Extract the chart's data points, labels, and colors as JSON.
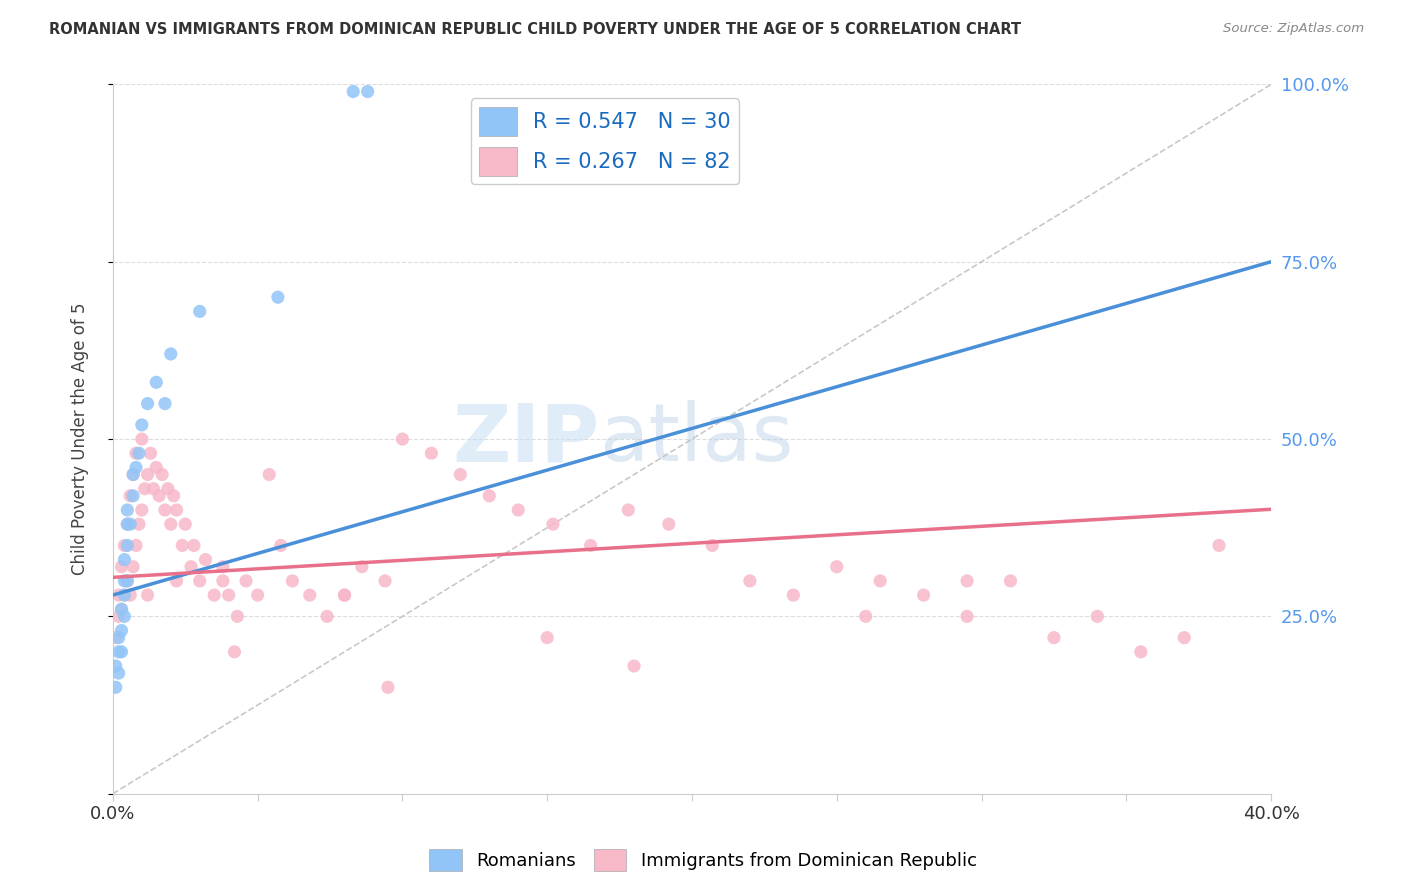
{
  "title": "ROMANIAN VS IMMIGRANTS FROM DOMINICAN REPUBLIC CHILD POVERTY UNDER THE AGE OF 5 CORRELATION CHART",
  "source": "Source: ZipAtlas.com",
  "ylabel": "Child Poverty Under the Age of 5",
  "xlim": [
    0,
    0.4
  ],
  "ylim": [
    0,
    1.0
  ],
  "blue_color": "#92c5f7",
  "pink_color": "#f7b8c8",
  "blue_line_color": "#4a90d9",
  "pink_line_color": "#e8708a",
  "blue_r": 0.547,
  "blue_n": 30,
  "pink_r": 0.267,
  "pink_n": 82,
  "legend_r_color": "#1a6bbf",
  "legend_n_color": "#cc0000",
  "watermark_color": "#ddeeff",
  "background_color": "#ffffff",
  "grid_color": "#dddddd",
  "blue_scatter_x": [
    0.001,
    0.001,
    0.002,
    0.002,
    0.002,
    0.003,
    0.003,
    0.003,
    0.004,
    0.004,
    0.004,
    0.004,
    0.005,
    0.005,
    0.005,
    0.005,
    0.006,
    0.007,
    0.007,
    0.008,
    0.009,
    0.01,
    0.012,
    0.015,
    0.018,
    0.02,
    0.03,
    0.057,
    0.083,
    0.088
  ],
  "blue_scatter_y": [
    0.15,
    0.18,
    0.17,
    0.2,
    0.22,
    0.2,
    0.23,
    0.26,
    0.25,
    0.28,
    0.3,
    0.33,
    0.3,
    0.35,
    0.38,
    0.4,
    0.38,
    0.42,
    0.45,
    0.46,
    0.48,
    0.52,
    0.55,
    0.58,
    0.55,
    0.62,
    0.68,
    0.7,
    0.99,
    0.99
  ],
  "pink_scatter_x": [
    0.001,
    0.002,
    0.002,
    0.003,
    0.003,
    0.004,
    0.004,
    0.005,
    0.005,
    0.006,
    0.006,
    0.007,
    0.007,
    0.008,
    0.008,
    0.009,
    0.01,
    0.01,
    0.011,
    0.012,
    0.013,
    0.014,
    0.015,
    0.016,
    0.017,
    0.018,
    0.019,
    0.02,
    0.021,
    0.022,
    0.024,
    0.025,
    0.027,
    0.028,
    0.03,
    0.032,
    0.035,
    0.038,
    0.04,
    0.043,
    0.046,
    0.05,
    0.054,
    0.058,
    0.062,
    0.068,
    0.074,
    0.08,
    0.086,
    0.094,
    0.1,
    0.11,
    0.12,
    0.13,
    0.14,
    0.152,
    0.165,
    0.178,
    0.192,
    0.207,
    0.22,
    0.235,
    0.25,
    0.265,
    0.28,
    0.295,
    0.31,
    0.325,
    0.34,
    0.355,
    0.37,
    0.382,
    0.295,
    0.18,
    0.095,
    0.042,
    0.26,
    0.15,
    0.08,
    0.038,
    0.022,
    0.012
  ],
  "pink_scatter_y": [
    0.22,
    0.25,
    0.28,
    0.26,
    0.32,
    0.28,
    0.35,
    0.3,
    0.38,
    0.28,
    0.42,
    0.32,
    0.45,
    0.35,
    0.48,
    0.38,
    0.4,
    0.5,
    0.43,
    0.45,
    0.48,
    0.43,
    0.46,
    0.42,
    0.45,
    0.4,
    0.43,
    0.38,
    0.42,
    0.4,
    0.35,
    0.38,
    0.32,
    0.35,
    0.3,
    0.33,
    0.28,
    0.3,
    0.28,
    0.25,
    0.3,
    0.28,
    0.45,
    0.35,
    0.3,
    0.28,
    0.25,
    0.28,
    0.32,
    0.3,
    0.5,
    0.48,
    0.45,
    0.42,
    0.4,
    0.38,
    0.35,
    0.4,
    0.38,
    0.35,
    0.3,
    0.28,
    0.32,
    0.3,
    0.28,
    0.25,
    0.3,
    0.22,
    0.25,
    0.2,
    0.22,
    0.35,
    0.3,
    0.18,
    0.15,
    0.2,
    0.25,
    0.22,
    0.28,
    0.32,
    0.3,
    0.28
  ]
}
